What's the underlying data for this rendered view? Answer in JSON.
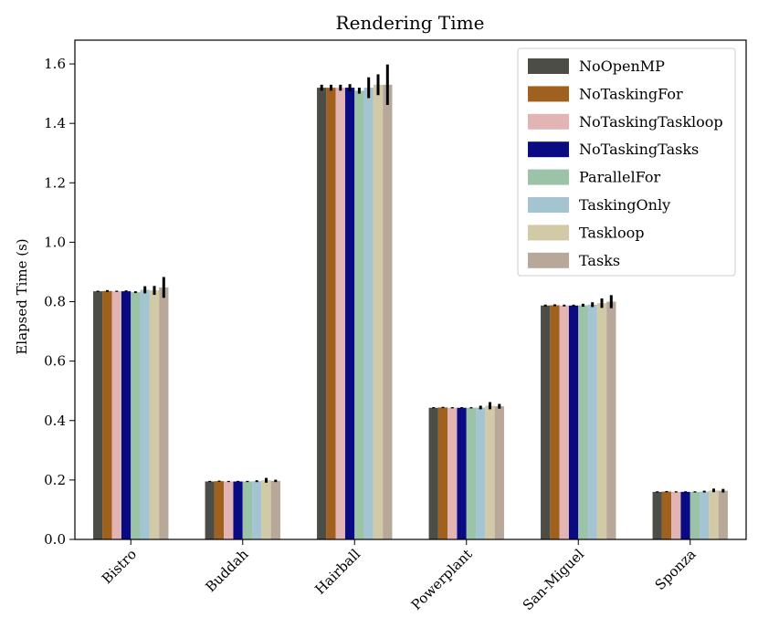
{
  "chart_data": {
    "type": "bar",
    "title": "Rendering Time",
    "xlabel": "",
    "ylabel": "Elapsed Time (s)",
    "ylim": [
      0,
      1.68
    ],
    "yticks": [
      "0.0",
      "0.2",
      "0.4",
      "0.6",
      "0.8",
      "1.0",
      "1.2",
      "1.4",
      "1.6"
    ],
    "ytick_values": [
      0,
      0.2,
      0.4,
      0.6,
      0.8,
      1.0,
      1.2,
      1.4,
      1.6
    ],
    "categories": [
      "Bistro",
      "Buddah",
      "Hairball",
      "Powerplant",
      "San-Miguel",
      "Sponza"
    ],
    "legend_position": "top-right",
    "series": [
      {
        "name": "NoOpenMP",
        "color": "#4d4d47",
        "values": [
          0.835,
          0.195,
          1.52,
          0.443,
          0.787,
          0.16
        ],
        "errors": [
          0.002,
          0.002,
          0.01,
          0.002,
          0.003,
          0.002
        ]
      },
      {
        "name": "NoTaskingFor",
        "color": "#a0601e",
        "values": [
          0.836,
          0.196,
          1.52,
          0.444,
          0.788,
          0.161
        ],
        "errors": [
          0.003,
          0.002,
          0.01,
          0.002,
          0.003,
          0.002
        ]
      },
      {
        "name": "NoTaskingTaskloop",
        "color": "#e3b4b4",
        "values": [
          0.835,
          0.195,
          1.52,
          0.443,
          0.787,
          0.16
        ],
        "errors": [
          0.002,
          0.002,
          0.01,
          0.002,
          0.003,
          0.002
        ]
      },
      {
        "name": "NoTaskingTasks",
        "color": "#0a0a82",
        "values": [
          0.835,
          0.195,
          1.52,
          0.443,
          0.787,
          0.16
        ],
        "errors": [
          0.003,
          0.002,
          0.012,
          0.002,
          0.003,
          0.002
        ]
      },
      {
        "name": "ParallelFor",
        "color": "#9ac3a7",
        "values": [
          0.832,
          0.195,
          1.51,
          0.443,
          0.788,
          0.16
        ],
        "errors": [
          0.003,
          0.002,
          0.01,
          0.002,
          0.005,
          0.002
        ]
      },
      {
        "name": "TaskingOnly",
        "color": "#a4c4d2",
        "values": [
          0.84,
          0.196,
          1.52,
          0.444,
          0.79,
          0.161
        ],
        "errors": [
          0.012,
          0.003,
          0.035,
          0.006,
          0.008,
          0.003
        ]
      },
      {
        "name": "Taskloop",
        "color": "#d2c9a6",
        "values": [
          0.838,
          0.199,
          1.53,
          0.45,
          0.795,
          0.165
        ],
        "errors": [
          0.015,
          0.008,
          0.035,
          0.012,
          0.016,
          0.006
        ]
      },
      {
        "name": "Tasks",
        "color": "#b7a89a",
        "values": [
          0.848,
          0.197,
          1.53,
          0.448,
          0.8,
          0.164
        ],
        "errors": [
          0.035,
          0.004,
          0.068,
          0.008,
          0.022,
          0.006
        ]
      }
    ]
  }
}
